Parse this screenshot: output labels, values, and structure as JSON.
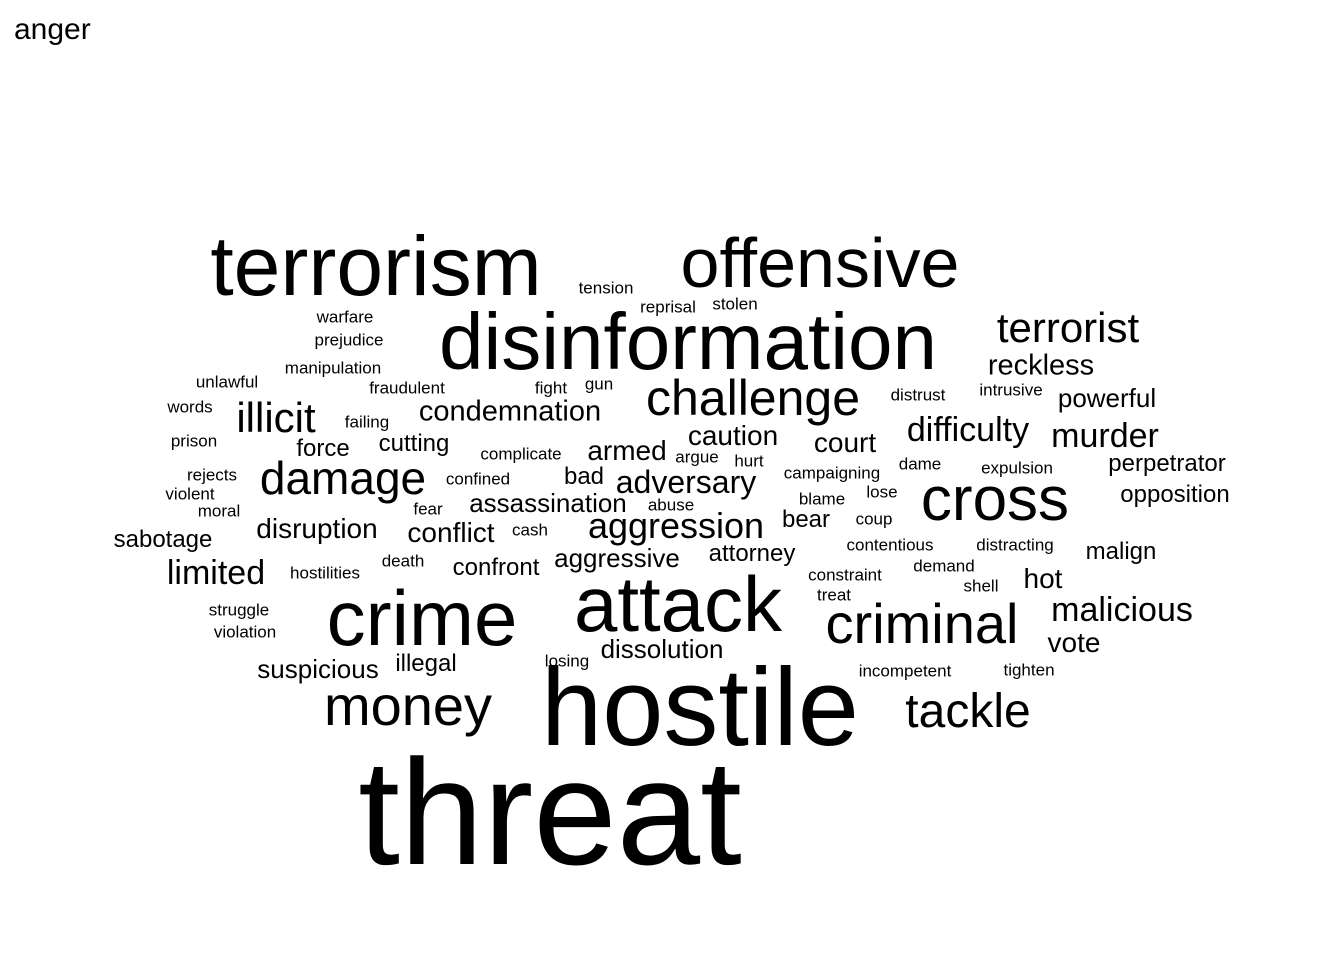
{
  "title": "anger",
  "text_color": "#000000",
  "background_color": "#ffffff",
  "words": [
    "threat",
    "hostile",
    "crime",
    "attack",
    "disinformation",
    "terrorism",
    "offensive",
    "cross",
    "criminal",
    "challenge",
    "money",
    "damage",
    "tackle",
    "terrorist",
    "illicit",
    "aggression",
    "difficulty",
    "malicious",
    "murder",
    "limited",
    "adversary",
    "condemnation",
    "reckless",
    "caution",
    "conflict",
    "disruption",
    "court",
    "armed",
    "aggressive",
    "hot",
    "suspicious",
    "dissolution",
    "assassination",
    "powerful",
    "opposition",
    "perpetrator",
    "vote",
    "malign",
    "sabotage",
    "confront",
    "attorney",
    "force",
    "cutting",
    "illegal",
    "bear",
    "bad",
    "tension",
    "reprisal",
    "stolen",
    "warfare",
    "prejudice",
    "manipulation",
    "unlawful",
    "fraudulent",
    "fight",
    "gun",
    "distrust",
    "intrusive",
    "words",
    "failing",
    "prison",
    "complicate",
    "argue",
    "hurt",
    "rejects",
    "confined",
    "campaigning",
    "dame",
    "expulsion",
    "violent",
    "lose",
    "blame",
    "fear",
    "abuse",
    "moral",
    "cash",
    "coup",
    "contentious",
    "distracting",
    "hostilities",
    "death",
    "demand",
    "constraint",
    "shell",
    "treat",
    "struggle",
    "violation",
    "losing",
    "incompetent",
    "tighten"
  ]
}
